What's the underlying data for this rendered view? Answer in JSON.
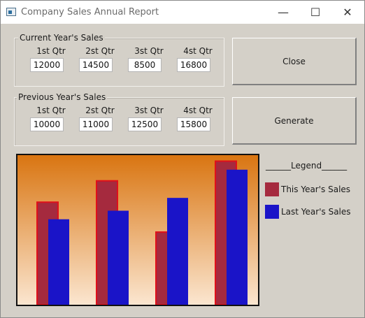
{
  "window": {
    "title": "Company Sales Annual Report",
    "minimize_glyph": "—",
    "maximize_glyph": "☐",
    "close_glyph": "✕"
  },
  "current": {
    "label": "Current Year's Sales",
    "quarters": [
      {
        "label": "1st Qtr",
        "value": "12000"
      },
      {
        "label": "2st Qtr",
        "value": "14500"
      },
      {
        "label": "3st Qtr",
        "value": "8500"
      },
      {
        "label": "4st Qtr",
        "value": "16800"
      }
    ]
  },
  "previous": {
    "label": "Previous Year's Sales",
    "quarters": [
      {
        "label": "1st Qtr",
        "value": "10000"
      },
      {
        "label": "2st Qtr",
        "value": "11000"
      },
      {
        "label": "3st Qtr",
        "value": "12500"
      },
      {
        "label": "4st Qtr",
        "value": "15800"
      }
    ]
  },
  "buttons": {
    "close": "Close",
    "generate": "Generate"
  },
  "legend": {
    "title": "______Legend______",
    "this_year": "This Year's Sales",
    "last_year": "Last Year's Sales"
  },
  "colors": {
    "this_year": "#a52a3e",
    "this_year_border": "#e0101a",
    "last_year": "#1a14c8",
    "chart_top": "#d97511",
    "chart_bottom": "#fbe6d0"
  },
  "chart_data": {
    "type": "bar",
    "categories": [
      "1st Qtr",
      "2st Qtr",
      "3st Qtr",
      "4st Qtr"
    ],
    "series": [
      {
        "name": "This Year's Sales",
        "values": [
          12000,
          14500,
          8500,
          16800
        ]
      },
      {
        "name": "Last Year's Sales",
        "values": [
          10000,
          11000,
          12500,
          15800
        ]
      }
    ],
    "ylim": [
      0,
      17500
    ],
    "grid": false,
    "legend_position": "right"
  }
}
